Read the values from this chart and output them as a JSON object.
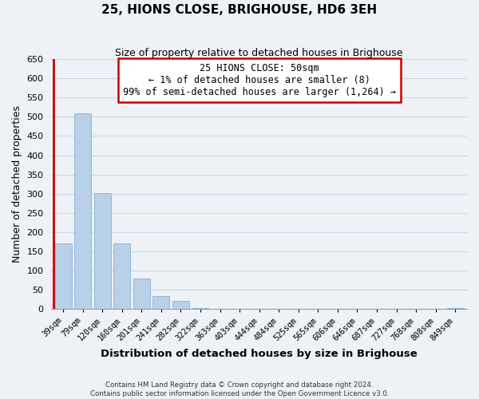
{
  "title": "25, HIONS CLOSE, BRIGHOUSE, HD6 3EH",
  "subtitle": "Size of property relative to detached houses in Brighouse",
  "xlabel": "Distribution of detached houses by size in Brighouse",
  "ylabel": "Number of detached properties",
  "bar_color": "#b8d0e8",
  "bar_edge_color": "#90b8d8",
  "categories": [
    "39sqm",
    "79sqm",
    "120sqm",
    "160sqm",
    "201sqm",
    "241sqm",
    "282sqm",
    "322sqm",
    "363sqm",
    "403sqm",
    "444sqm",
    "484sqm",
    "525sqm",
    "565sqm",
    "606sqm",
    "646sqm",
    "687sqm",
    "727sqm",
    "768sqm",
    "808sqm",
    "849sqm"
  ],
  "values": [
    170,
    510,
    302,
    170,
    80,
    33,
    20,
    2,
    0,
    0,
    0,
    0,
    0,
    0,
    0,
    0,
    0,
    0,
    0,
    0,
    2
  ],
  "ylim": [
    0,
    650
  ],
  "yticks": [
    0,
    50,
    100,
    150,
    200,
    250,
    300,
    350,
    400,
    450,
    500,
    550,
    600,
    650
  ],
  "annotation_line1": "25 HIONS CLOSE: 50sqm",
  "annotation_line2": "← 1% of detached houses are smaller (8)",
  "annotation_line3": "99% of semi-detached houses are larger (1,264) →",
  "marker_bar_color_red": "#cc0000",
  "footnote": "Contains HM Land Registry data © Crown copyright and database right 2024.\nContains public sector information licensed under the Open Government Licence v3.0.",
  "grid_color": "#c8d8e8",
  "background_color": "#eef2f6",
  "title_fontsize": 11,
  "subtitle_fontsize": 9,
  "ylabel_fontsize": 9,
  "xlabel_fontsize": 9.5
}
